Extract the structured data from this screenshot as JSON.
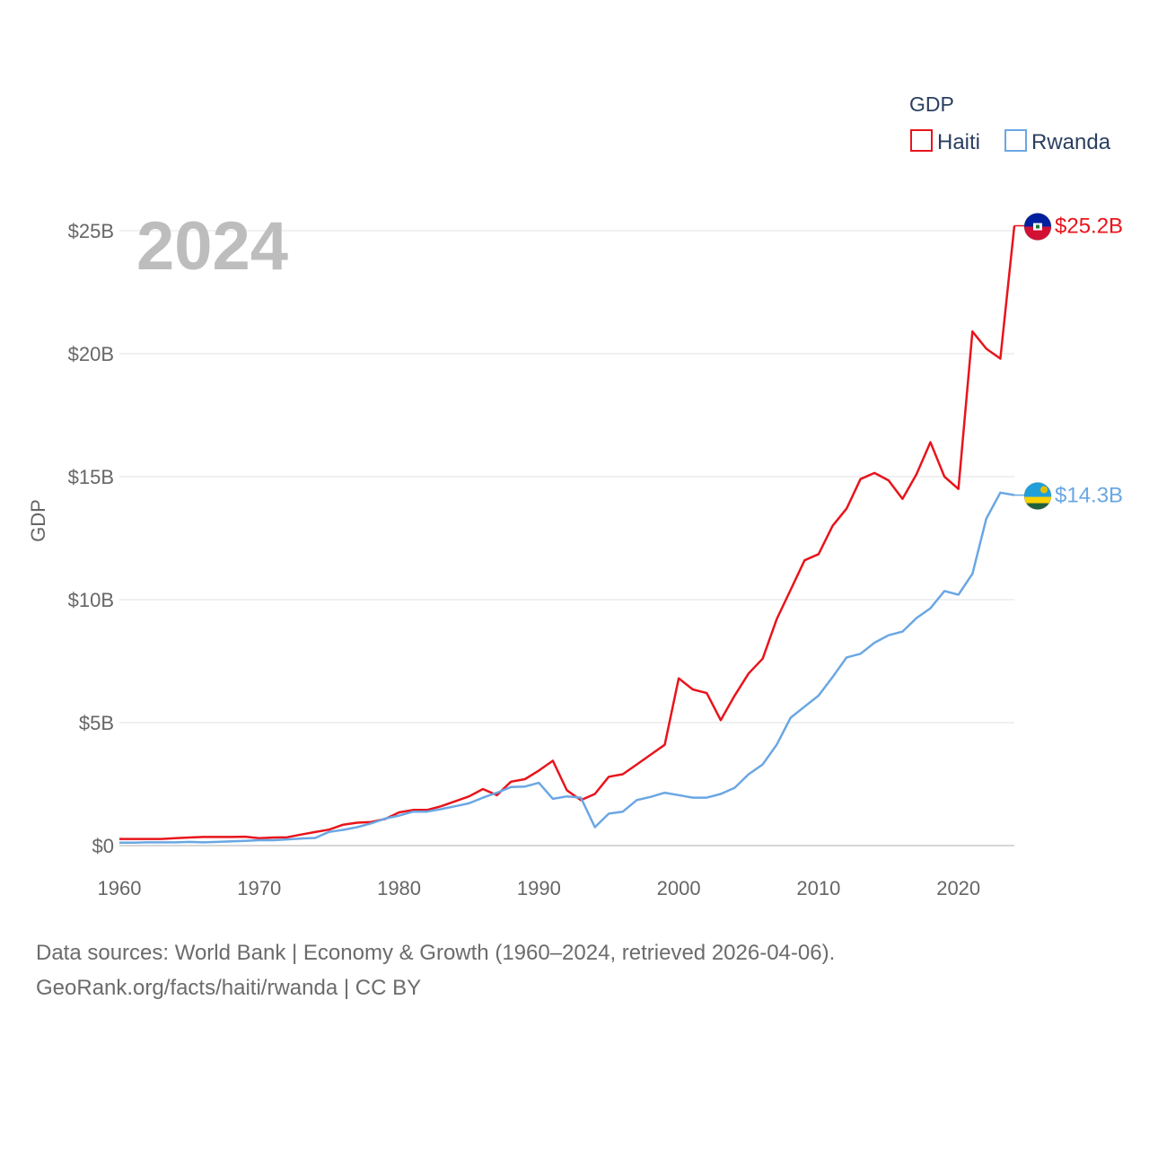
{
  "chart_data": {
    "type": "line",
    "title": "",
    "year_label": "2024",
    "xlabel": "",
    "ylabel": "GDP",
    "xlim": [
      1960,
      2024
    ],
    "ylim": [
      0,
      26000000000
    ],
    "x_ticks": [
      1960,
      1970,
      1980,
      1990,
      2000,
      2010,
      2020
    ],
    "y_ticks": [
      {
        "value": 0,
        "label": "$0"
      },
      {
        "value": 5000000000,
        "label": "$5B"
      },
      {
        "value": 10000000000,
        "label": "$10B"
      },
      {
        "value": 15000000000,
        "label": "$15B"
      },
      {
        "value": 20000000000,
        "label": "$20B"
      },
      {
        "value": 25000000000,
        "label": "$25B"
      }
    ],
    "legend": {
      "title": "GDP",
      "position": "top-right"
    },
    "x": [
      1960,
      1961,
      1962,
      1963,
      1964,
      1965,
      1966,
      1967,
      1968,
      1969,
      1970,
      1971,
      1972,
      1973,
      1974,
      1975,
      1976,
      1977,
      1978,
      1979,
      1980,
      1981,
      1982,
      1983,
      1984,
      1985,
      1986,
      1987,
      1988,
      1989,
      1990,
      1991,
      1992,
      1993,
      1994,
      1995,
      1996,
      1997,
      1998,
      1999,
      2000,
      2001,
      2002,
      2003,
      2004,
      2005,
      2006,
      2007,
      2008,
      2009,
      2010,
      2011,
      2012,
      2013,
      2014,
      2015,
      2016,
      2017,
      2018,
      2019,
      2020,
      2021,
      2022,
      2023,
      2024
    ],
    "series": [
      {
        "name": "Haiti",
        "color": "#e8141c",
        "end_label": "$25.2B",
        "flag": "haiti-flag",
        "values": [
          0.27,
          0.27,
          0.27,
          0.27,
          0.3,
          0.33,
          0.35,
          0.35,
          0.35,
          0.36,
          0.3,
          0.33,
          0.34,
          0.45,
          0.55,
          0.65,
          0.85,
          0.93,
          0.96,
          1.08,
          1.35,
          1.45,
          1.45,
          1.6,
          1.8,
          2.0,
          2.3,
          2.05,
          2.6,
          2.7,
          3.05,
          3.45,
          2.25,
          1.85,
          2.1,
          2.8,
          2.9,
          3.3,
          3.7,
          4.1,
          6.8,
          6.35,
          6.2,
          5.1,
          6.1,
          7.0,
          7.6,
          9.2,
          10.4,
          11.6,
          11.85,
          13.0,
          13.7,
          14.9,
          15.15,
          14.85,
          14.1,
          15.1,
          16.4,
          15.0,
          14.5,
          20.9,
          20.2,
          19.8,
          25.2
        ]
      },
      {
        "name": "Rwanda",
        "color": "#6aa7e3",
        "end_label": "$14.3B",
        "flag": "rwanda-flag",
        "values": [
          0.12,
          0.12,
          0.13,
          0.13,
          0.13,
          0.15,
          0.13,
          0.15,
          0.17,
          0.19,
          0.22,
          0.22,
          0.25,
          0.29,
          0.31,
          0.56,
          0.64,
          0.75,
          0.9,
          1.1,
          1.22,
          1.38,
          1.38,
          1.48,
          1.6,
          1.72,
          1.95,
          2.15,
          2.38,
          2.4,
          2.55,
          1.9,
          2.0,
          1.95,
          0.75,
          1.3,
          1.38,
          1.85,
          1.98,
          2.15,
          2.05,
          1.95,
          1.95,
          2.1,
          2.35,
          2.9,
          3.3,
          4.1,
          5.2,
          5.65,
          6.1,
          6.85,
          7.65,
          7.8,
          8.25,
          8.55,
          8.7,
          9.25,
          9.65,
          10.35,
          10.2,
          11.05,
          13.3,
          14.35,
          14.25
        ]
      }
    ]
  },
  "footer": {
    "line1": "Data sources: World Bank | Economy & Growth (1960–2024, retrieved 2026-04-06).",
    "line2": "GeoRank.org/facts/haiti/rwanda | CC BY"
  }
}
